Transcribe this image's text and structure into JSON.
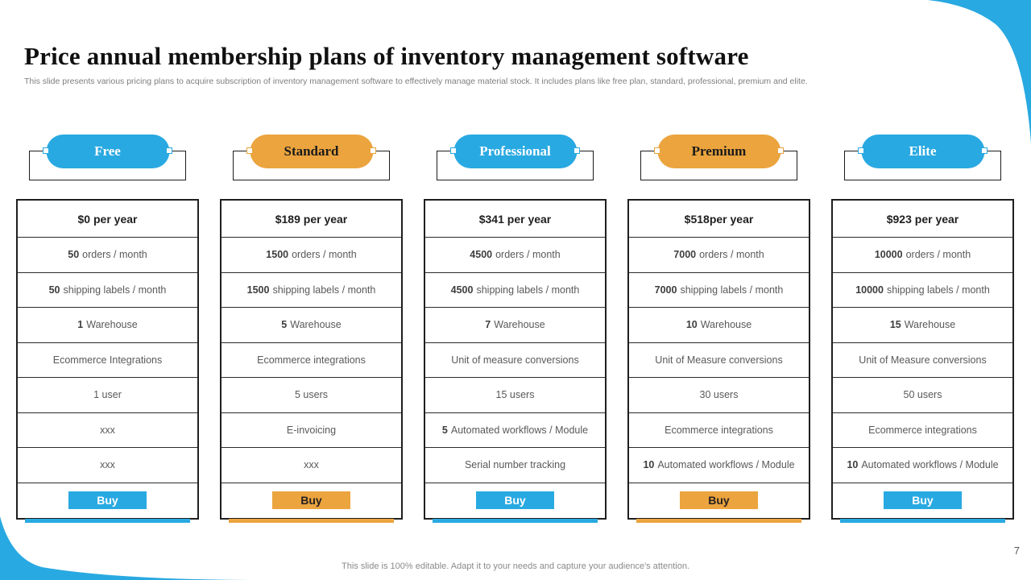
{
  "slide": {
    "title": "Price annual membership plans of inventory management software",
    "subtitle": "This slide presents various pricing plans to acquire subscription of inventory management software to effectively manage material stock. It includes plans like free plan, standard, professional, premium and elite.",
    "footer": "This slide is 100% editable. Adapt it to your needs and capture your audience's attention.",
    "page_number": "7"
  },
  "labels": {
    "buy": "Buy"
  },
  "colors": {
    "blue": "#29a9e1",
    "orange": "#eba43e",
    "buy_text_on_blue": "#ffffff",
    "buy_text_on_orange": "#231f20",
    "table_border": "#1f1f1f"
  },
  "plans": [
    {
      "name": "Free",
      "color": "blue",
      "price": "$0 per year",
      "features": [
        {
          "bold": "50",
          "text": "orders / month"
        },
        {
          "bold": "50",
          "text": "shipping labels / month"
        },
        {
          "bold": "1",
          "text": "Warehouse"
        },
        {
          "text": "Ecommerce Integrations"
        },
        {
          "text": "1 user"
        },
        {
          "text": "xxx"
        },
        {
          "text": "xxx"
        }
      ]
    },
    {
      "name": "Standard",
      "color": "orange",
      "price": "$189 per year",
      "features": [
        {
          "bold": "1500",
          "text": "orders / month"
        },
        {
          "bold": "1500",
          "text": "shipping labels / month"
        },
        {
          "bold": "5",
          "text": "Warehouse"
        },
        {
          "text": "Ecommerce integrations"
        },
        {
          "text": "5 users"
        },
        {
          "text": "E-invoicing"
        },
        {
          "text": "xxx"
        }
      ]
    },
    {
      "name": "Professional",
      "color": "blue",
      "price": "$341 per year",
      "features": [
        {
          "bold": "4500",
          "text": "orders / month"
        },
        {
          "bold": "4500",
          "text": "shipping labels / month"
        },
        {
          "bold": "7",
          "text": "Warehouse"
        },
        {
          "text": "Unit of measure conversions"
        },
        {
          "text": "15 users"
        },
        {
          "bold": "5",
          "text": "Automated workflows / Module"
        },
        {
          "text": "Serial number tracking"
        }
      ]
    },
    {
      "name": "Premium",
      "color": "orange",
      "price": "$518per year",
      "features": [
        {
          "bold": "7000",
          "text": "orders / month"
        },
        {
          "bold": "7000",
          "text": "shipping labels / month"
        },
        {
          "bold": "10",
          "text": "Warehouse"
        },
        {
          "text": "Unit of Measure conversions"
        },
        {
          "text": "30 users"
        },
        {
          "text": "Ecommerce integrations"
        },
        {
          "bold": "10",
          "text": "Automated workflows / Module"
        }
      ]
    },
    {
      "name": "Elite",
      "color": "blue",
      "price": "$923 per year",
      "features": [
        {
          "bold": "10000",
          "text": "orders / month"
        },
        {
          "bold": "10000",
          "text": "shipping labels / month"
        },
        {
          "bold": "15",
          "text": "Warehouse"
        },
        {
          "text": "Unit of Measure conversions"
        },
        {
          "text": "50 users"
        },
        {
          "text": "Ecommerce integrations"
        },
        {
          "bold": "10",
          "text": "Automated workflows / Module"
        }
      ]
    }
  ]
}
